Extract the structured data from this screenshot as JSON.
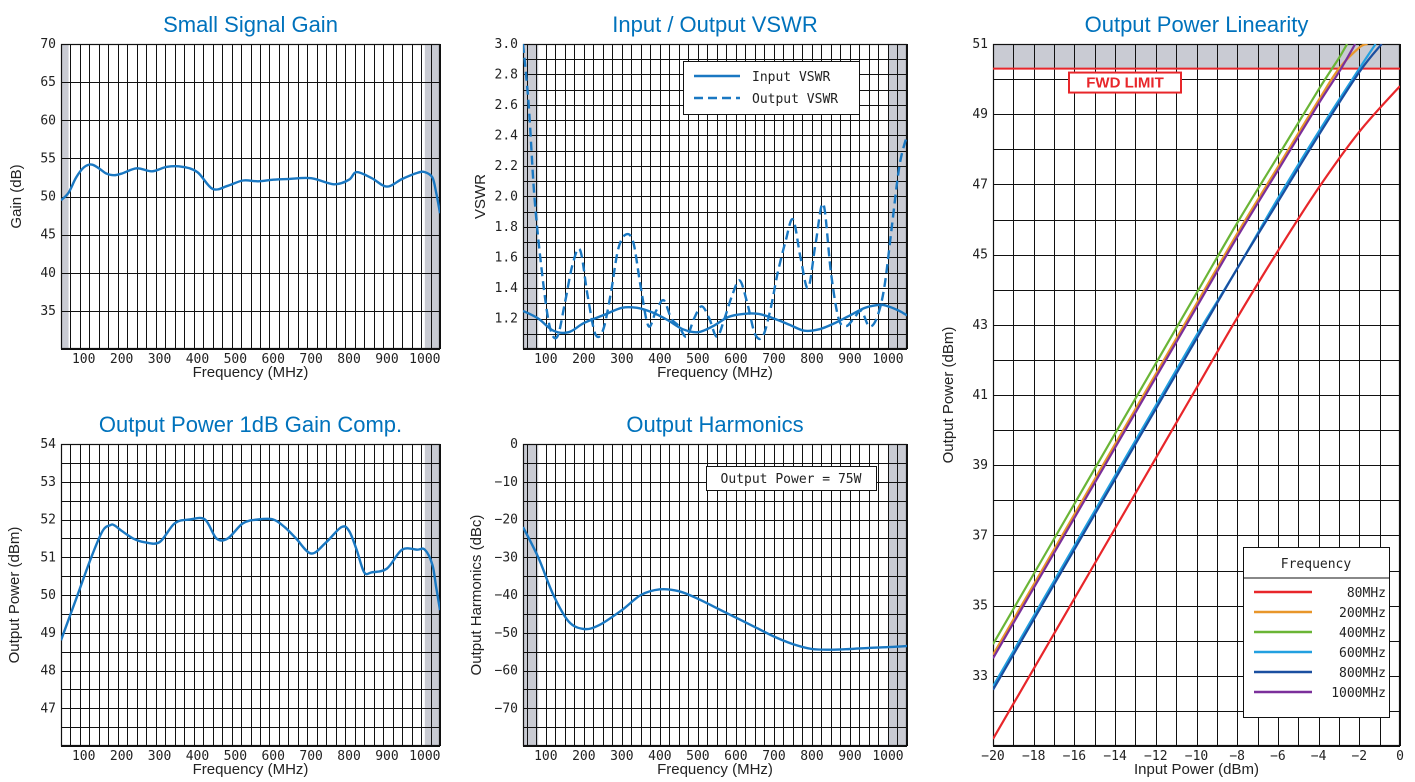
{
  "chart_data": [
    {
      "id": "gain",
      "type": "line",
      "title": "Small Signal Gain",
      "xlabel": "Frequency (MHz)",
      "ylabel": "Gain (dB)",
      "xlim": [
        40,
        1040
      ],
      "ylim": [
        30,
        70
      ],
      "xticks": [
        100,
        200,
        300,
        400,
        500,
        600,
        700,
        800,
        900,
        1000
      ],
      "yticks": [
        35,
        40,
        45,
        50,
        55,
        60,
        65,
        70
      ],
      "grid": true,
      "shaded_x": [
        [
          40,
          60
        ],
        [
          1000,
          1040
        ]
      ],
      "series": [
        {
          "color": "#1a78c2",
          "style": "solid",
          "x": [
            40,
            60,
            80,
            100,
            120,
            140,
            160,
            180,
            200,
            240,
            280,
            320,
            360,
            400,
            440,
            480,
            520,
            560,
            600,
            640,
            700,
            760,
            800,
            820,
            860,
            900,
            940,
            980,
            1000,
            1020,
            1030,
            1040
          ],
          "y": [
            49.5,
            50.5,
            52.5,
            53.8,
            54.2,
            53.7,
            53.0,
            52.8,
            53.0,
            53.7,
            53.3,
            53.9,
            53.9,
            53.2,
            51.0,
            51.4,
            52.1,
            52.0,
            52.2,
            52.3,
            52.4,
            51.6,
            52.2,
            53.2,
            52.4,
            51.3,
            52.3,
            53.1,
            53.2,
            52.5,
            50.5,
            47.8
          ]
        }
      ]
    },
    {
      "id": "vswr",
      "type": "line",
      "title": "Input / Output VSWR",
      "xlabel": "Frequency (MHz)",
      "ylabel": "VSWR",
      "xlim": [
        40,
        1050
      ],
      "ylim": [
        1.0,
        3.0
      ],
      "xticks": [
        100,
        200,
        300,
        400,
        500,
        600,
        700,
        800,
        900,
        1000
      ],
      "yticks": [
        1.2,
        1.4,
        1.6,
        1.8,
        2.0,
        2.2,
        2.4,
        2.6,
        2.8,
        3.0
      ],
      "ytick_labels": [
        "1.2",
        "1.4",
        "1.6",
        "1.8",
        "2.0",
        "2.2",
        "2.4",
        "2.6",
        "2.8",
        "3.0"
      ],
      "grid": true,
      "legend_position": "top-right",
      "shaded_x": [
        [
          40,
          80
        ],
        [
          1000,
          1050
        ]
      ],
      "series": [
        {
          "name": "Input VSWR",
          "color": "#1a78c2",
          "style": "solid",
          "x": [
            40,
            80,
            120,
            160,
            200,
            250,
            300,
            340,
            380,
            420,
            460,
            500,
            540,
            580,
            620,
            660,
            700,
            740,
            780,
            820,
            860,
            900,
            940,
            980,
            1000,
            1030,
            1050
          ],
          "y": [
            1.25,
            1.2,
            1.12,
            1.11,
            1.17,
            1.22,
            1.27,
            1.27,
            1.24,
            1.19,
            1.13,
            1.11,
            1.15,
            1.21,
            1.23,
            1.23,
            1.2,
            1.16,
            1.12,
            1.13,
            1.17,
            1.22,
            1.27,
            1.29,
            1.28,
            1.25,
            1.22
          ]
        },
        {
          "name": "Output VSWR",
          "color": "#1a78c2",
          "style": "dashed",
          "x": [
            40,
            55,
            70,
            90,
            110,
            130,
            150,
            170,
            190,
            210,
            230,
            250,
            270,
            290,
            310,
            330,
            350,
            370,
            390,
            410,
            430,
            450,
            470,
            490,
            510,
            530,
            550,
            570,
            590,
            610,
            630,
            650,
            670,
            690,
            710,
            730,
            750,
            770,
            790,
            810,
            830,
            850,
            870,
            890,
            910,
            930,
            950,
            970,
            990,
            1010,
            1030,
            1050
          ],
          "y": [
            3.0,
            2.6,
            2.0,
            1.5,
            1.15,
            1.08,
            1.3,
            1.55,
            1.65,
            1.35,
            1.1,
            1.12,
            1.35,
            1.65,
            1.75,
            1.7,
            1.4,
            1.15,
            1.25,
            1.32,
            1.2,
            1.15,
            1.08,
            1.2,
            1.28,
            1.2,
            1.08,
            1.2,
            1.35,
            1.45,
            1.3,
            1.1,
            1.08,
            1.25,
            1.5,
            1.7,
            1.85,
            1.6,
            1.4,
            1.7,
            1.95,
            1.5,
            1.2,
            1.15,
            1.2,
            1.25,
            1.15,
            1.2,
            1.4,
            1.8,
            2.2,
            2.4
          ]
        }
      ]
    },
    {
      "id": "p1db",
      "type": "line",
      "title": "Output Power 1dB Gain Comp.",
      "xlabel": "Frequency (MHz)",
      "ylabel": "Output Power (dBm)",
      "xlim": [
        40,
        1040
      ],
      "ylim": [
        46,
        54
      ],
      "xticks": [
        100,
        200,
        300,
        400,
        500,
        600,
        700,
        800,
        900,
        1000
      ],
      "yticks": [
        47,
        48,
        49,
        50,
        51,
        52,
        53,
        54
      ],
      "grid": true,
      "shaded_x": [
        [
          1000,
          1040
        ]
      ],
      "series": [
        {
          "color": "#1a78c2",
          "style": "solid",
          "x": [
            40,
            80,
            120,
            150,
            170,
            180,
            200,
            230,
            260,
            300,
            340,
            380,
            420,
            450,
            480,
            520,
            560,
            600,
            630,
            660,
            700,
            740,
            780,
            800,
            820,
            840,
            860,
            900,
            940,
            980,
            1000,
            1020,
            1030,
            1040
          ],
          "y": [
            48.8,
            49.9,
            51.0,
            51.7,
            51.85,
            51.85,
            51.7,
            51.5,
            51.4,
            51.4,
            51.9,
            52.0,
            52.0,
            51.5,
            51.5,
            51.9,
            52.0,
            52.0,
            51.8,
            51.5,
            51.1,
            51.4,
            51.8,
            51.7,
            51.2,
            50.6,
            50.6,
            50.7,
            51.2,
            51.2,
            51.2,
            50.8,
            50.2,
            49.6
          ]
        }
      ]
    },
    {
      "id": "harm",
      "type": "line",
      "title": "Output Harmonics",
      "xlabel": "Frequency (MHz)",
      "ylabel": "Output Harmonics (dBc)",
      "xlim": [
        40,
        1050
      ],
      "ylim": [
        -80,
        0
      ],
      "xticks": [
        100,
        200,
        300,
        400,
        500,
        600,
        700,
        800,
        900,
        1000
      ],
      "yticks": [
        -70,
        -60,
        -50,
        -40,
        -30,
        -20,
        -10,
        0
      ],
      "ytick_labels": [
        "−70",
        "−60",
        "−50",
        "−40",
        "−30",
        "−20",
        "−10",
        "0"
      ],
      "grid": true,
      "annotation": "Output Power = 75W",
      "shaded_x": [
        [
          40,
          80
        ],
        [
          1000,
          1050
        ]
      ],
      "series": [
        {
          "color": "#1a78c2",
          "style": "solid",
          "x": [
            40,
            80,
            120,
            160,
            200,
            240,
            300,
            350,
            400,
            450,
            500,
            550,
            600,
            650,
            700,
            750,
            800,
            850,
            900,
            950,
            1000,
            1050
          ],
          "y": [
            -22,
            -30,
            -40,
            -47,
            -49,
            -48,
            -44,
            -40,
            -38.5,
            -39,
            -41,
            -43.5,
            -46,
            -48.5,
            -51,
            -53,
            -54.3,
            -54.5,
            -54.3,
            -54,
            -53.8,
            -53.5
          ]
        }
      ]
    },
    {
      "id": "lin",
      "type": "line",
      "title": "Output Power Linearity",
      "xlabel": "Input Power (dBm)",
      "ylabel": "Output Power (dBm)",
      "xlim": [
        -20,
        0
      ],
      "ylim": [
        31,
        51
      ],
      "xticks": [
        -20,
        -18,
        -16,
        -14,
        -12,
        -10,
        -8,
        -6,
        -4,
        -2,
        0
      ],
      "xtick_labels": [
        "−20",
        "−18",
        "−16",
        "−14",
        "−12",
        "−10",
        "−8",
        "−6",
        "−4",
        "−2",
        "0"
      ],
      "yticks": [
        33,
        35,
        37,
        39,
        41,
        43,
        45,
        47,
        49,
        51
      ],
      "grid": true,
      "shaded_y": [
        50.3,
        51
      ],
      "limit_line": {
        "y": 50.3,
        "label": "FWD LIMIT",
        "color": "#e8262a"
      },
      "legend_title": "Frequency",
      "legend_position": "bottom-right",
      "series": [
        {
          "name": "80MHz",
          "color": "#e8262a",
          "x": [
            -20,
            -18,
            -16,
            -14,
            -12,
            -10,
            -8,
            -6,
            -4,
            -2,
            0
          ],
          "y": [
            31.2,
            33.2,
            35.2,
            37.2,
            39.2,
            41.2,
            43.2,
            45.1,
            46.9,
            48.5,
            49.8
          ]
        },
        {
          "name": "200MHz",
          "color": "#e8962a",
          "x": [
            -20,
            -18,
            -16,
            -14,
            -12,
            -10,
            -8,
            -6,
            -4,
            -3,
            -2,
            -1.6
          ],
          "y": [
            33.6,
            35.6,
            37.6,
            39.6,
            41.6,
            43.6,
            45.6,
            47.5,
            49.4,
            50.3,
            50.9,
            51.0
          ]
        },
        {
          "name": "400MHz",
          "color": "#6ab536",
          "x": [
            -20,
            -18,
            -16,
            -14,
            -12,
            -10,
            -8,
            -6,
            -4,
            -3,
            -2.6
          ],
          "y": [
            33.9,
            35.9,
            37.9,
            39.9,
            41.9,
            43.9,
            45.9,
            47.8,
            49.7,
            50.6,
            51.0
          ]
        },
        {
          "name": "600MHz",
          "color": "#22a0e0",
          "x": [
            -20,
            -18,
            -16,
            -14,
            -12,
            -10,
            -8,
            -6,
            -4,
            -2,
            -1.2
          ],
          "y": [
            32.7,
            34.7,
            36.7,
            38.7,
            40.7,
            42.7,
            44.6,
            46.6,
            48.5,
            50.3,
            51.0
          ]
        },
        {
          "name": "800MHz",
          "color": "#1a4fa0",
          "x": [
            -20,
            -18,
            -16,
            -14,
            -12,
            -10,
            -8,
            -6,
            -4,
            -2,
            -0.9
          ],
          "y": [
            32.6,
            34.6,
            36.6,
            38.6,
            40.6,
            42.6,
            44.6,
            46.5,
            48.4,
            50.2,
            51.0
          ]
        },
        {
          "name": "1000MHz",
          "color": "#7b2f9b",
          "x": [
            -20,
            -18,
            -16,
            -14,
            -12,
            -10,
            -8,
            -6,
            -4,
            -3,
            -2.2
          ],
          "y": [
            33.5,
            35.5,
            37.5,
            39.5,
            41.5,
            43.5,
            45.5,
            47.4,
            49.3,
            50.2,
            51.0
          ]
        }
      ]
    }
  ]
}
